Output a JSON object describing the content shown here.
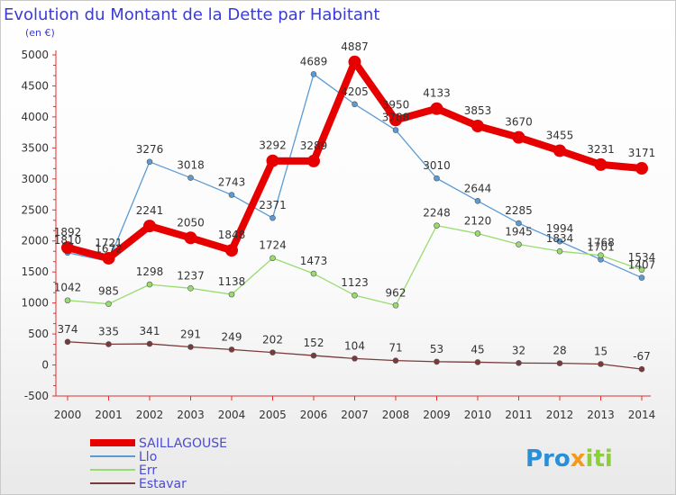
{
  "chart_data": {
    "type": "line",
    "title": "Evolution du Montant de la Dette par Habitant",
    "subtitle": "(en €)",
    "xlabel": "",
    "ylabel": "",
    "ylim": [
      -500,
      5000
    ],
    "y_ticks": [
      5000,
      4500,
      4000,
      3500,
      3000,
      2500,
      2000,
      1500,
      1000,
      500,
      0,
      -500
    ],
    "x": [
      "2000",
      "2001",
      "2002",
      "2003",
      "2004",
      "2005",
      "2006",
      "2007",
      "2008",
      "2009",
      "2010",
      "2011",
      "2012",
      "2013",
      "2014"
    ],
    "grid": false,
    "legend_position": "bottom-left",
    "series": [
      {
        "name": "Llo",
        "color": "#5b9bd5",
        "values": [
          1810,
          1672,
          3276,
          3018,
          2743,
          2371,
          4689,
          4205,
          3788,
          3010,
          2644,
          2285,
          1994,
          1701,
          1407
        ],
        "labels": [
          "1810",
          "1672",
          "3276",
          "3018",
          "2743",
          "2371",
          "4689",
          "4205",
          "3788",
          "3010",
          "2644",
          "2285",
          "1994",
          "1701",
          "1407"
        ]
      },
      {
        "name": "Err",
        "color": "#98dc6e",
        "values": [
          1042,
          985,
          1298,
          1237,
          1138,
          1724,
          1473,
          1123,
          962,
          2248,
          2120,
          1945,
          1834,
          1768,
          1534
        ],
        "labels": [
          "1042",
          "985",
          "1298",
          "1237",
          "1138",
          "1724",
          "1473",
          "1123",
          "962",
          "2248",
          "2120",
          "1945",
          "1834",
          "1768",
          "1534"
        ]
      },
      {
        "name": "Estavar",
        "color": "#7b3a3a",
        "values": [
          374,
          335,
          341,
          291,
          249,
          202,
          152,
          104,
          71,
          53,
          45,
          32,
          28,
          15,
          -67
        ],
        "labels": [
          "374",
          "335",
          "341",
          "291",
          "249",
          "202",
          "152",
          "104",
          "71",
          "53",
          "45",
          "32",
          "28",
          "15",
          "-67"
        ]
      },
      {
        "name": "SAILLAGOUSE",
        "color": "#e60000",
        "values": [
          1892,
          1721,
          2241,
          2050,
          1848,
          3292,
          3289,
          4887,
          3950,
          4133,
          3853,
          3670,
          3455,
          3231,
          3171
        ],
        "labels": [
          "1892",
          "1721",
          "2241",
          "2050",
          "1848",
          "3292",
          "3289",
          "4887",
          "3950",
          "4133",
          "3853",
          "3670",
          "3455",
          "3231",
          "3171"
        ]
      }
    ]
  },
  "legend": {
    "items": [
      "SAILLAGOUSE",
      "Llo",
      "Err",
      "Estavar"
    ]
  },
  "logo": {
    "text": "Proxiti"
  }
}
